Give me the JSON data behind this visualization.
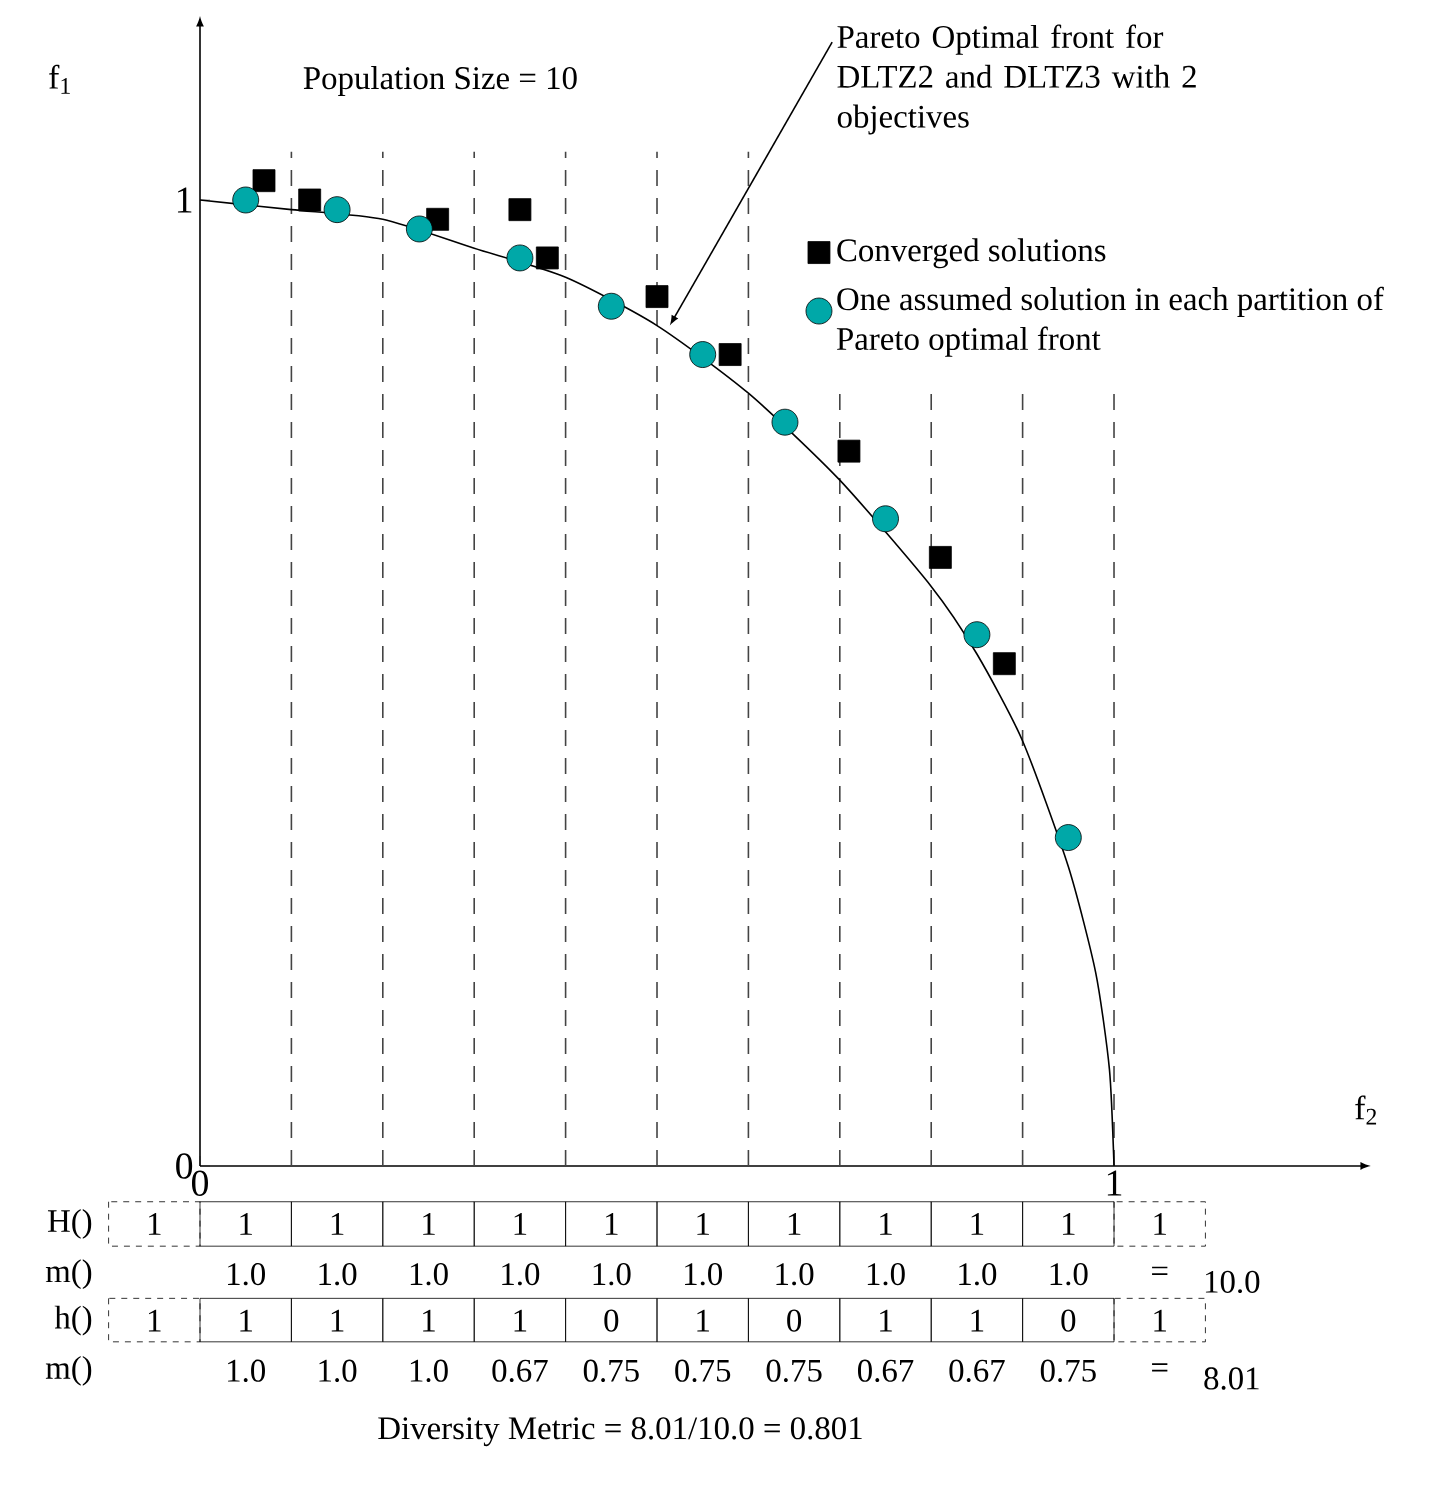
{
  "chart_data": {
    "type": "scatter",
    "title": "Population Size = 10",
    "xlabel": "f$_{2}$",
    "ylabel": "f$_{1}$",
    "xlim": [
      0,
      1.27
    ],
    "ylim": [
      0,
      1.18
    ],
    "xticks": [
      {
        "value": 0,
        "label": "0"
      },
      {
        "value": 1,
        "label": "1"
      }
    ],
    "yticks": [
      {
        "value": 0,
        "label": "0"
      },
      {
        "value": 1,
        "label": "1"
      }
    ],
    "legend": "top right",
    "series": [
      {
        "type": "line",
        "color": "#000000",
        "line_style": "solid",
        "marker": "none",
        "x": [
          0,
          0.1,
          0.2,
          0.3,
          0.4,
          0.5,
          0.6,
          0.7,
          0.8,
          0.85,
          0.9,
          0.95,
          0.98,
          0.995,
          1
        ],
        "values": [
          1,
          0.99,
          0.98,
          0.95,
          0.92,
          0.87,
          0.8,
          0.71,
          0.6,
          0.53,
          0.44,
          0.31,
          0.2,
          0.1,
          0
        ]
      },
      {
        "name": "Converged solutions",
        "color": "#000000",
        "marker": "square",
        "x": [
          0.07,
          0.12,
          0.26,
          0.35,
          0.38,
          0.5,
          0.58,
          0.71,
          0.81,
          0.88
        ],
        "values": [
          1.02,
          1.0,
          0.98,
          0.99,
          0.94,
          0.9,
          0.84,
          0.74,
          0.63,
          0.52
        ]
      },
      {
        "name": "One assumed solution in each partition of Pareto optimal front",
        "color": "#00a8a8",
        "marker": "circle",
        "x": [
          0.05,
          0.15,
          0.24,
          0.35,
          0.45,
          0.55,
          0.64,
          0.75,
          0.85,
          0.95
        ],
        "values": [
          1.0,
          0.99,
          0.97,
          0.94,
          0.89,
          0.84,
          0.77,
          0.67,
          0.55,
          0.34
        ]
      }
    ],
    "ref_lines": [
      {
        "axis": "x",
        "value": 0.1,
        "line_style": "dashed"
      },
      {
        "axis": "x",
        "value": 0.2,
        "line_style": "dashed"
      },
      {
        "axis": "x",
        "value": 0.3,
        "line_style": "dashed"
      },
      {
        "axis": "x",
        "value": 0.4,
        "line_style": "dashed"
      },
      {
        "axis": "x",
        "value": 0.5,
        "line_style": "dashed"
      },
      {
        "axis": "x",
        "value": 0.6,
        "line_style": "dashed"
      },
      {
        "axis": "x",
        "value": 0.7,
        "line_style": "dashed"
      },
      {
        "axis": "x",
        "value": 0.8,
        "line_style": "dashed"
      },
      {
        "axis": "x",
        "value": 0.9,
        "line_style": "dashed"
      },
      {
        "axis": "x",
        "value": 1.0,
        "line_style": "dashed"
      }
    ],
    "annotations": [
      {
        "text": "Pareto Optimal front for DLTZ2 and DLTZ3 with 2 objectives",
        "x": 0.514,
        "y": 0.87
      },
      "Diversity Metric = 8.01/10.0 = 0.801",
      "H()",
      "1",
      "1",
      "1",
      "1",
      "1",
      "1",
      "1",
      "1",
      "1",
      "1",
      "1",
      "1",
      "m()",
      "1.0",
      "1.0",
      "1.0",
      "1.0",
      "1.0",
      "1.0",
      "1.0",
      "1.0",
      "1.0",
      "1.0",
      "=",
      "10.0",
      "h()",
      "1",
      "1",
      "1",
      "1",
      "1",
      "0",
      "1",
      "0",
      "1",
      "1",
      "0",
      "1",
      "m()",
      "1.0",
      "1.0",
      "1.0",
      "0.67",
      "0.75",
      "0.75",
      "0.75",
      "0.67",
      "0.67",
      "0.75",
      "=",
      "8.01"
    ]
  }
}
